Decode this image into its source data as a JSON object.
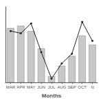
{
  "chart_data": {
    "type": "bar",
    "xlabel": "Months",
    "categories": [
      "MAR",
      "APR",
      "MAY",
      "JUN",
      "JUL",
      "AUG",
      "SEP",
      "OCT",
      "N"
    ],
    "series": [
      {
        "type": "bar",
        "color": "#c8c8c8",
        "values": [
          72,
          75,
          68,
          45,
          8,
          22,
          35,
          62,
          50
        ]
      },
      {
        "type": "line",
        "color": "#222222",
        "marker": "circle",
        "values": [
          68,
          65,
          78,
          40,
          5,
          25,
          38,
          80,
          55
        ]
      }
    ],
    "ylim": [
      0,
      100
    ],
    "tick_labels": "x",
    "grid": false
  }
}
